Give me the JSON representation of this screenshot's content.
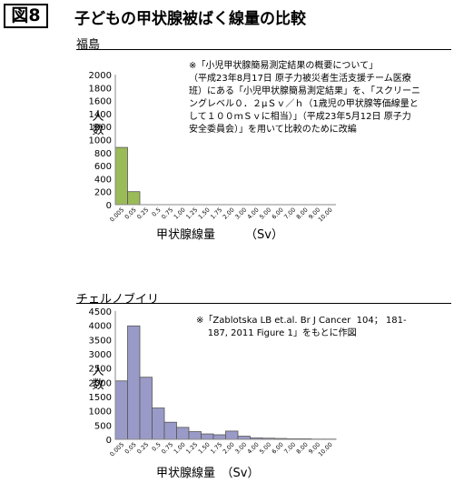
{
  "figure_label": "図8",
  "title": "子どもの甲状腺被ばく線量の比較",
  "fukushima": {
    "section_label": "福島",
    "note": "※「小児甲状腺簡易測定結果の概要について」\n（平成23年8月17日 原子力被災者生活支援チーム医療\n班）にある「小児甲状腺簡易測定結果」を、「スクリーニ\nングレベル０．２μＳｖ／ｈ（1歳児の甲状腺等価線量と\nして１００ｍＳｖに相当）」（平成23年5月12日 原子力\n安全委員会）」を用いて比較のために改編"
  },
  "chernobyl": {
    "section_label": "チェルノブイリ",
    "note": "※「Zablotska LB et.al. Br J Cancer  104； 181-\n    187, 2011 Figure 1」をもとに作図"
  },
  "chart_data": [
    {
      "type": "bar",
      "name": "fukushima",
      "categories": [
        "0.005",
        "0.05",
        "0.25",
        "0.5",
        "0.75",
        "1.00",
        "1.25",
        "1.50",
        "1.75",
        "2.00",
        "3.00",
        "4.00",
        "5.00",
        "6.00",
        "7.00",
        "8.00",
        "9.00",
        "10.00"
      ],
      "values": [
        880,
        200,
        0,
        0,
        0,
        0,
        0,
        0,
        0,
        0,
        0,
        0,
        0,
        0,
        0,
        0,
        0,
        0
      ],
      "y_ticks": [
        "0",
        "200",
        "400",
        "600",
        "800",
        "1000",
        "1200",
        "1400",
        "1600",
        "1800",
        "2000"
      ],
      "ylim": [
        0,
        2000
      ],
      "ylabel": "人数",
      "xlabel": "甲状腺線量",
      "bar_color": "#9bbb59"
    },
    {
      "type": "bar",
      "name": "chernobyl",
      "categories": [
        "0.005",
        "0.05",
        "0.25",
        "0.5",
        "0.75",
        "1.00",
        "1.25",
        "1.50",
        "1.75",
        "2.00",
        "3.00",
        "4.00",
        "5.00",
        "6.00",
        "7.00",
        "8.00",
        "9.00",
        "10.00"
      ],
      "values": [
        2050,
        3980,
        2180,
        1100,
        600,
        420,
        270,
        190,
        160,
        290,
        110,
        50,
        40,
        30,
        20,
        20,
        10,
        10
      ],
      "y_ticks": [
        "0",
        "500",
        "1000",
        "1500",
        "2000",
        "2500",
        "3000",
        "3500",
        "4000",
        "4500"
      ],
      "ylim": [
        0,
        4500
      ],
      "ylabel": "人数",
      "xlabel": "甲状腺線量　（Sv）",
      "bar_color": "#9a9ac8"
    }
  ],
  "fukushima_xunit": "（Sv）"
}
